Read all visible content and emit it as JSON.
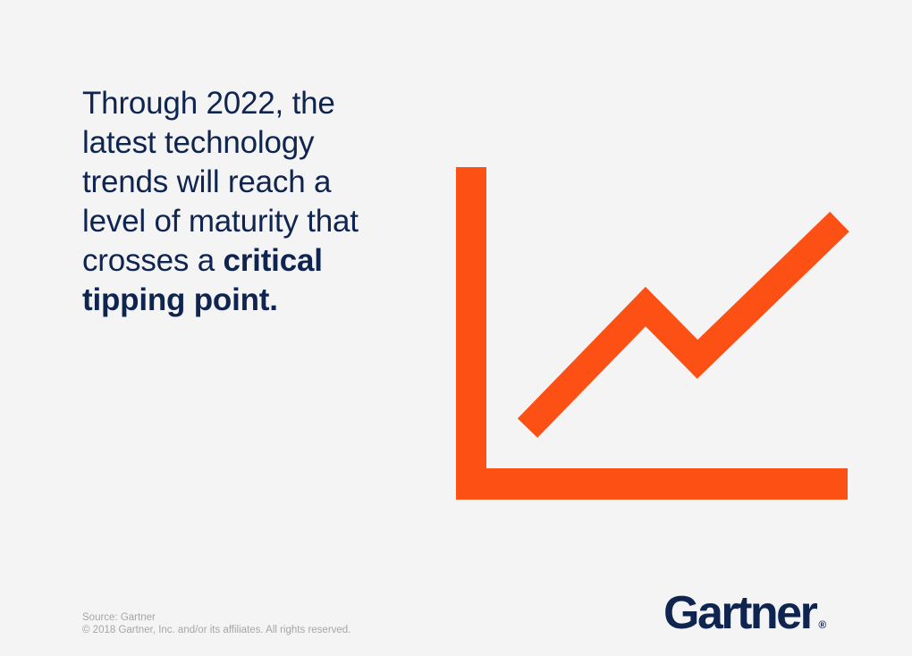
{
  "headline": {
    "line1": "Through 2022, the",
    "line2": "latest technology",
    "line3": "trends will reach a",
    "line4": "level of maturity that",
    "line5_prefix": "crosses a ",
    "line5_emphasis": "critical",
    "line6_emphasis": "tipping point."
  },
  "footer": {
    "source": "Source: Gartner",
    "copyright": "© 2018 Gartner, Inc. and/or its affiliates. All rights reserved."
  },
  "logo": {
    "wordmark": "Gartner",
    "registered_mark": "®"
  },
  "colors": {
    "background": "#f4f4f4",
    "text_navy": "#0f2550",
    "accent_orange": "#fd5015",
    "footer_gray": "#a6a6a6"
  },
  "icons": {
    "illustration": "trend-line-chart-icon"
  }
}
